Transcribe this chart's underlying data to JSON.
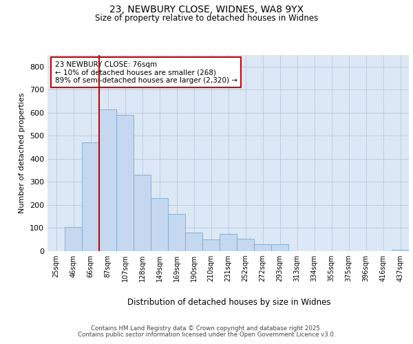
{
  "title_line1": "23, NEWBURY CLOSE, WIDNES, WA8 9YX",
  "title_line2": "Size of property relative to detached houses in Widnes",
  "xlabel": "Distribution of detached houses by size in Widnes",
  "ylabel": "Number of detached properties",
  "bar_labels": [
    "25sqm",
    "46sqm",
    "66sqm",
    "87sqm",
    "107sqm",
    "128sqm",
    "149sqm",
    "169sqm",
    "190sqm",
    "210sqm",
    "231sqm",
    "252sqm",
    "272sqm",
    "293sqm",
    "313sqm",
    "334sqm",
    "355sqm",
    "375sqm",
    "396sqm",
    "416sqm",
    "437sqm"
  ],
  "bar_values": [
    0,
    103,
    470,
    615,
    590,
    330,
    230,
    160,
    80,
    50,
    75,
    55,
    30,
    30,
    0,
    0,
    0,
    0,
    0,
    0,
    5
  ],
  "bar_color": "#c5d8ef",
  "bar_edge_color": "#7aaad0",
  "red_line_x": 2.5,
  "annotation_text": "23 NEWBURY CLOSE: 76sqm\n← 10% of detached houses are smaller (268)\n89% of semi-detached houses are larger (2,320) →",
  "annotation_box_color": "#ffffff",
  "annotation_box_edge": "#cc0000",
  "ylim": [
    0,
    850
  ],
  "yticks": [
    0,
    100,
    200,
    300,
    400,
    500,
    600,
    700,
    800
  ],
  "plot_background": "#dce8f5",
  "footer_line1": "Contains HM Land Registry data © Crown copyright and database right 2025.",
  "footer_line2": "Contains public sector information licensed under the Open Government Licence v3.0."
}
